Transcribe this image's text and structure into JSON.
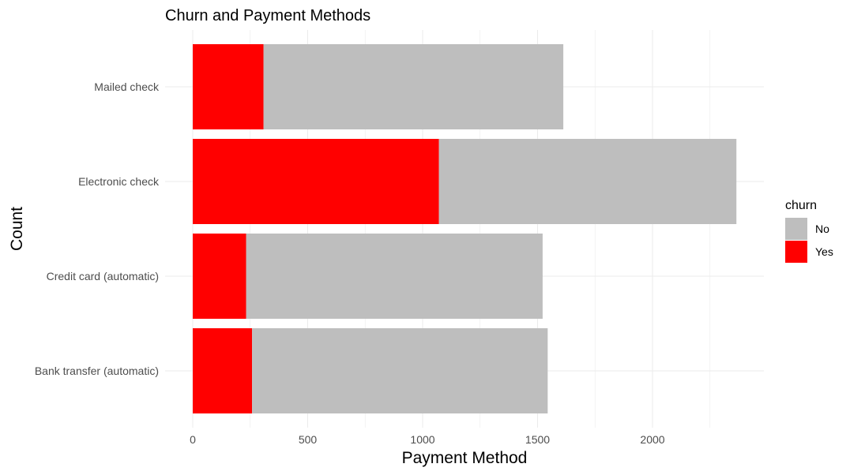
{
  "chart_data": {
    "type": "bar",
    "orientation": "horizontal",
    "stacked": true,
    "title": "Churn and Payment Methods",
    "xlabel": "Payment Method",
    "ylabel": "Count",
    "categories": [
      "Bank transfer (automatic)",
      "Credit card (automatic)",
      "Electronic check",
      "Mailed check"
    ],
    "series": [
      {
        "name": "Yes",
        "color": "#ff0000",
        "values": [
          258,
          232,
          1071,
          308
        ]
      },
      {
        "name": "No",
        "color": "#bebebe",
        "values": [
          1286,
          1290,
          1294,
          1304
        ]
      }
    ],
    "xlim": [
      0,
      2480
    ],
    "xticks": [
      0,
      500,
      1000,
      1500,
      2000
    ],
    "grid": true,
    "legend": {
      "title": "churn",
      "position": "right",
      "items": [
        {
          "label": "No",
          "color": "#bebebe"
        },
        {
          "label": "Yes",
          "color": "#ff0000"
        }
      ]
    }
  }
}
